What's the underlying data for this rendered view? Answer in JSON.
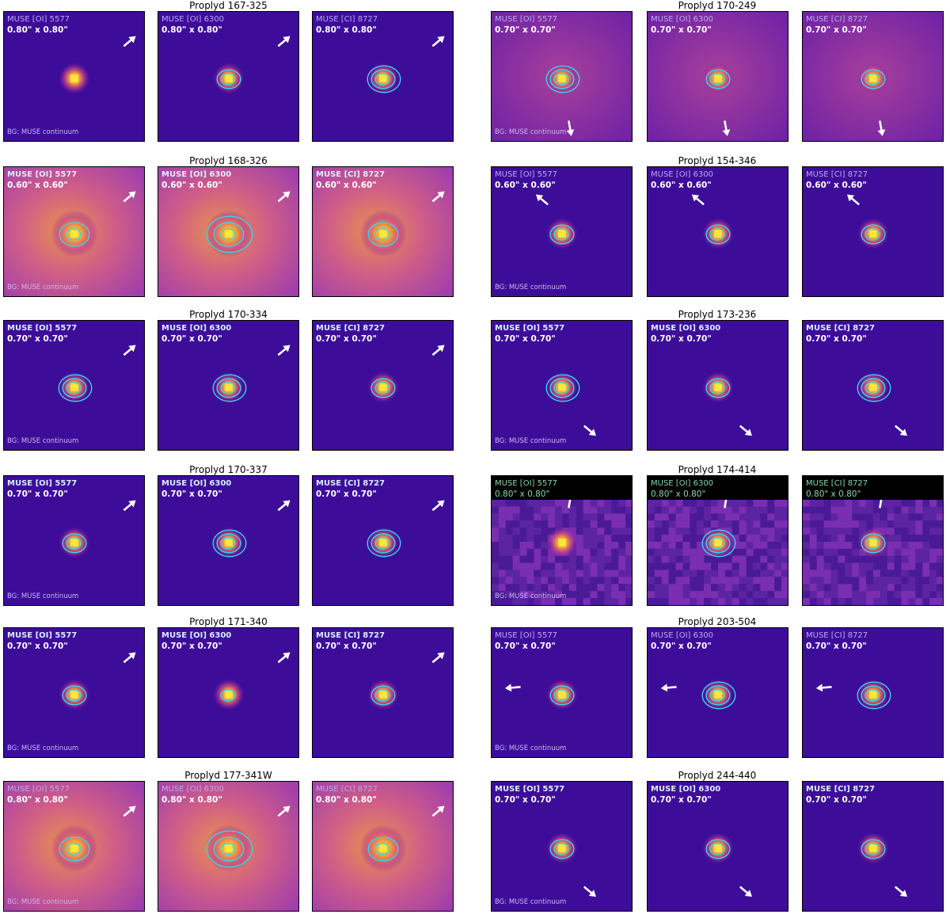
{
  "colors": {
    "contour": "#39d6e6",
    "arrow": "#ffffff",
    "label_dim": "#b9a9f0",
    "label_bright": "#ffffff",
    "label_green": "#86d8a8",
    "bg_dark": "#3d0d9a",
    "bg_mid": "#8b2fa8",
    "bg_warm": "#d05e87",
    "core": "#ffe93a"
  },
  "bg_note": "BG: MUSE continuum",
  "lines": [
    "MUSE [OI] 5577",
    "MUSE [OI] 6300",
    "MUSE [CI] 8727"
  ],
  "columns": [
    {
      "groups": [
        {
          "title": "Proplyd 167-325",
          "size": "0.80\" x 0.80\"",
          "style": "dim",
          "arrow": "ne",
          "bg": "dark",
          "contours": [
            0,
            2,
            3
          ]
        },
        {
          "title": "Proplyd 168-326",
          "size": "0.60\" x 0.60\"",
          "style": "bright",
          "arrow": "ne",
          "bg": "warm",
          "contours": [
            2,
            3,
            2
          ]
        },
        {
          "title": "Proplyd 170-334",
          "size": "0.70\" x 0.70\"",
          "style": "bright",
          "arrow": "ne",
          "bg": "dark",
          "contours": [
            3,
            3,
            2
          ]
        },
        {
          "title": "Proplyd 170-337",
          "size": "0.70\" x 0.70\"",
          "style": "bright",
          "arrow": "ne",
          "bg": "dark",
          "contours": [
            2,
            3,
            3
          ]
        },
        {
          "title": "Proplyd 171-340",
          "size": "0.70\" x 0.70\"",
          "style": "bright",
          "arrow": "ne",
          "bg": "dark",
          "contours": [
            2,
            1,
            2
          ]
        },
        {
          "title": "Proplyd 177-341W",
          "size": "0.80\" x 0.80\"",
          "style": "dim",
          "arrow": "ne",
          "bg": "warm",
          "contours": [
            2,
            3,
            2
          ]
        }
      ]
    },
    {
      "groups": [
        {
          "title": "Proplyd 170-249",
          "size": "0.70\" x 0.70\"",
          "style": "dim",
          "arrow": "s",
          "bg": "mid",
          "contours": [
            3,
            2,
            2
          ]
        },
        {
          "title": "Proplyd 154-346",
          "size": "0.60\" x 0.60\"",
          "style": "dim",
          "arrow": "nw",
          "bg": "dark",
          "contours": [
            2,
            2,
            2
          ]
        },
        {
          "title": "Proplyd 173-236",
          "size": "0.70\" x 0.70\"",
          "style": "bright",
          "arrow": "se",
          "bg": "dark",
          "contours": [
            3,
            2,
            3
          ]
        },
        {
          "title": "Proplyd 174-414",
          "size": "0.80\" x 0.80\"",
          "style": "green",
          "arrow": "n",
          "bg": "noisy",
          "contours": [
            0,
            3,
            2
          ]
        },
        {
          "title": "Proplyd 203-504",
          "size": "0.70\" x 0.70\"",
          "style": "dim",
          "arrow": "w",
          "bg": "dark",
          "contours": [
            2,
            3,
            3
          ]
        },
        {
          "title": "Proplyd 244-440",
          "size": "0.70\" x 0.70\"",
          "style": "bright",
          "arrow": "se",
          "bg": "dark",
          "contours": [
            2,
            2,
            2
          ]
        }
      ]
    }
  ]
}
